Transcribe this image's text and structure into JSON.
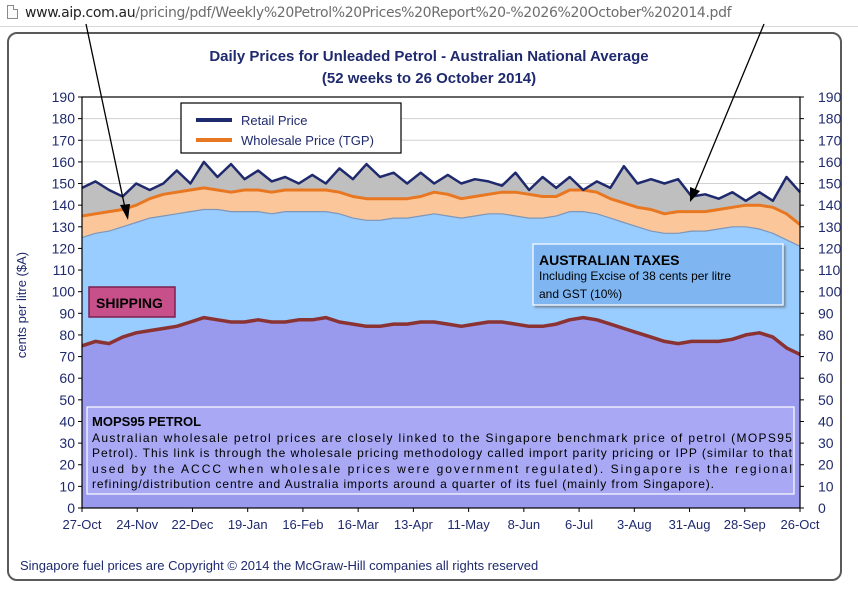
{
  "browser": {
    "url_host": "www.aip.com.au",
    "url_path": "/pricing/pdf/Weekly%20Petrol%20Prices%20Report%20-%2026%20October%202014.pdf"
  },
  "colors": {
    "retail_line": "#1f2a6e",
    "wholesale_line": "#e87722",
    "mops_line": "#8b3333",
    "retail_band": "#bfbfbf",
    "wholesale_band": "#fbc79a",
    "taxes_band": "#99ccff",
    "shipping_band": "#9999ee",
    "title_color": "#1f2a6e"
  },
  "chart_data": {
    "type": "area",
    "title": "Daily Prices for Unleaded Petrol - Australian National Average",
    "subtitle": "(52 weeks to 26 October 2014)",
    "ylabel": "cents per litre ($A)",
    "xlabel": "",
    "ylim": [
      0,
      190
    ],
    "yticks": [
      0,
      10,
      20,
      30,
      40,
      50,
      60,
      70,
      80,
      90,
      100,
      110,
      120,
      130,
      140,
      150,
      160,
      170,
      180,
      190
    ],
    "x_tick_labels": [
      "27-Oct",
      "24-Nov",
      "22-Dec",
      "19-Jan",
      "16-Feb",
      "16-Mar",
      "13-Apr",
      "11-May",
      "8-Jun",
      "6-Jul",
      "3-Aug",
      "31-Aug",
      "28-Sep",
      "26-Oct"
    ],
    "grid": "horizontal",
    "legend_position": "top-left",
    "series": [
      {
        "name": "Retail Price",
        "values": [
          148,
          151,
          147,
          144,
          150,
          147,
          150,
          156,
          150,
          160,
          153,
          159,
          152,
          156,
          151,
          153,
          150,
          154,
          150,
          157,
          152,
          159,
          153,
          155,
          150,
          155,
          150,
          154,
          150,
          152,
          151,
          149,
          155,
          147,
          153,
          148,
          153,
          147,
          151,
          148,
          158,
          150,
          152,
          150,
          152,
          144,
          145,
          143,
          146,
          142,
          146,
          142,
          153,
          146
        ]
      },
      {
        "name": "Wholesale Price (TGP)",
        "values": [
          135,
          136,
          137,
          138,
          140,
          143,
          145,
          146,
          147,
          148,
          147,
          146,
          147,
          147,
          146,
          147,
          147,
          147,
          147,
          146,
          144,
          143,
          143,
          143,
          143,
          144,
          146,
          145,
          143,
          144,
          145,
          146,
          146,
          145,
          144,
          144,
          147,
          147,
          146,
          143,
          141,
          139,
          138,
          136,
          137,
          137,
          137,
          138,
          139,
          140,
          140,
          139,
          136,
          131
        ]
      }
    ],
    "derived_lines": [
      {
        "label": "MOPS95 PETROL",
        "values": [
          75,
          77,
          76,
          79,
          81,
          82,
          83,
          84,
          86,
          88,
          87,
          86,
          86,
          87,
          86,
          86,
          87,
          87,
          88,
          86,
          85,
          84,
          84,
          85,
          85,
          86,
          86,
          85,
          84,
          85,
          86,
          86,
          85,
          84,
          84,
          85,
          87,
          88,
          87,
          85,
          83,
          81,
          79,
          77,
          76,
          77,
          77,
          77,
          78,
          80,
          81,
          79,
          74,
          71
        ]
      },
      {
        "label": "AUSTRALIAN TAXES",
        "values": [
          125,
          127,
          128,
          130,
          132,
          134,
          135,
          136,
          137,
          138,
          138,
          137,
          137,
          137,
          136,
          137,
          137,
          137,
          137,
          136,
          134,
          133,
          133,
          134,
          134,
          135,
          136,
          135,
          134,
          135,
          136,
          136,
          135,
          134,
          134,
          135,
          137,
          137,
          136,
          134,
          132,
          130,
          128,
          127,
          127,
          128,
          128,
          129,
          130,
          130,
          129,
          127,
          124,
          121
        ]
      }
    ],
    "annotations": {
      "shipping_label": "SHIPPING",
      "taxes_title": "AUSTRALIAN TAXES",
      "taxes_line1": "Including Excise of 38 cents per litre",
      "taxes_line2": "and GST (10%)",
      "mops_title": "MOPS95 PETROL",
      "mops_lines": [
        "Australian wholesale petrol prices are closely linked to the Singapore benchmark price of petrol (MOPS95",
        "Petrol).  This link is through the wholesale pricing methodology called import parity pricing or IPP (similar to that",
        "used by the ACCC when wholesale prices were government regulated).  Singapore is the regional",
        "refining/distribution centre and Australia imports around a quarter of its fuel (mainly from Singapore)."
      ],
      "copyright": "Singapore fuel prices are Copyright © 2014 the McGraw-Hill companies all rights reserved"
    }
  }
}
